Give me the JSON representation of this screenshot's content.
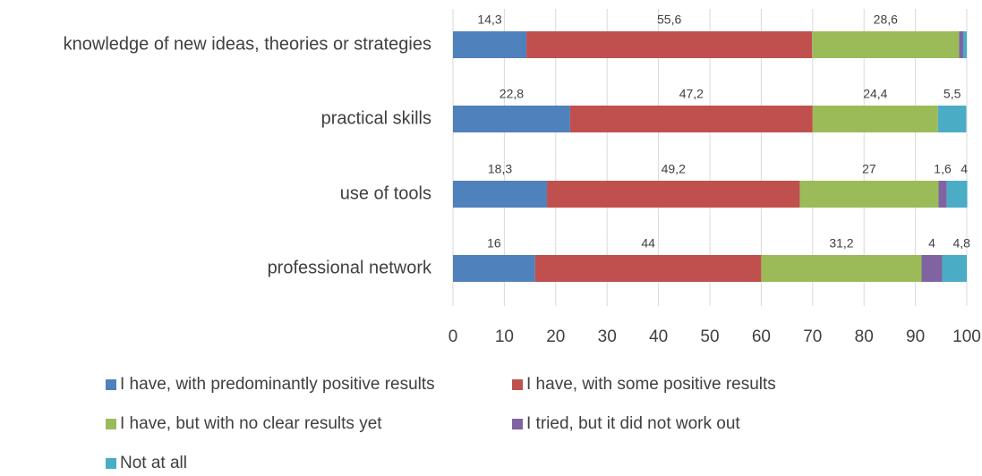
{
  "chart_data": {
    "type": "stacked-bar-horizontal",
    "categories": [
      "knowledge of new ideas, theories or strategies",
      "practical skills",
      "use of tools",
      "professional network"
    ],
    "series": [
      {
        "name": "I have, with predominantly positive results",
        "color": "#4f81bd",
        "values": [
          14.3,
          22.8,
          18.3,
          16
        ],
        "value_labels": [
          "14,3",
          "22,8",
          "18,3",
          "16"
        ]
      },
      {
        "name": "I have, with some positive results",
        "color": "#c0504d",
        "values": [
          55.6,
          47.2,
          49.2,
          44
        ],
        "value_labels": [
          "55,6",
          "47,2",
          "49,2",
          "44"
        ]
      },
      {
        "name": "I have, but with no clear results yet",
        "color": "#9bbb59",
        "values": [
          28.6,
          24.4,
          27,
          31.2
        ],
        "value_labels": [
          "28,6",
          "24,4",
          "27",
          "31,2"
        ]
      },
      {
        "name": "I tried, but it did not work out",
        "color": "#8064a2",
        "values": [
          0.8,
          0,
          1.6,
          4
        ],
        "value_labels": [
          null,
          null,
          "1,6",
          "4"
        ]
      },
      {
        "name": "Not at all",
        "color": "#4bacc6",
        "values": [
          0.7,
          5.5,
          4,
          4.8
        ],
        "value_labels": [
          null,
          "5,5",
          "4",
          "4,8"
        ]
      }
    ],
    "xlim": [
      0,
      100
    ],
    "xticks": [
      0,
      10,
      20,
      30,
      40,
      50,
      60,
      70,
      80,
      90,
      100
    ],
    "grid": true,
    "legend": "bottom"
  }
}
